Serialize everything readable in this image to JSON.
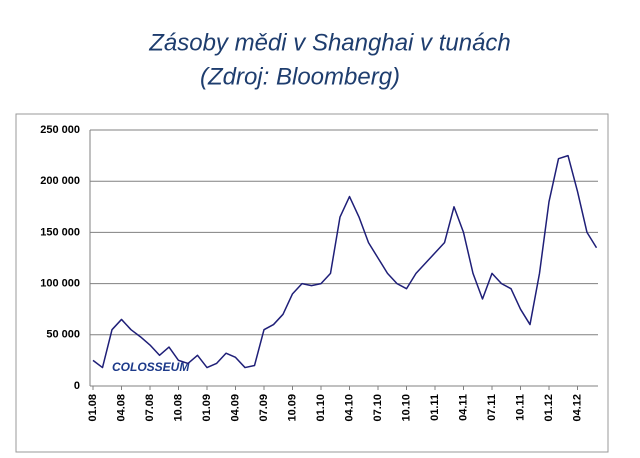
{
  "chart_data": {
    "type": "line",
    "title": "Zásoby mědi v Shanghai v tunách",
    "subtitle": "(Zdroj: Bloomberg)",
    "watermark": "COLOSSEUM",
    "categories": [
      "01.08",
      null,
      null,
      "04.08",
      null,
      null,
      "07.08",
      null,
      null,
      "10.08",
      null,
      null,
      "01.09",
      null,
      null,
      "04.09",
      null,
      null,
      "07.09",
      null,
      null,
      "10.09",
      null,
      null,
      "01.10",
      null,
      null,
      "04.10",
      null,
      null,
      "07.10",
      null,
      null,
      "10.10",
      null,
      null,
      "01.11",
      null,
      null,
      "04.11",
      null,
      null,
      "07.11",
      null,
      null,
      "10.11",
      null,
      null,
      "01.12",
      null,
      null,
      "04.12",
      null,
      null
    ],
    "values": [
      25000,
      18000,
      55000,
      65000,
      55000,
      48000,
      40000,
      30000,
      38000,
      25000,
      22000,
      30000,
      18000,
      22000,
      32000,
      28000,
      18000,
      20000,
      55000,
      60000,
      70000,
      90000,
      100000,
      98000,
      100000,
      110000,
      165000,
      185000,
      165000,
      140000,
      125000,
      110000,
      100000,
      95000,
      110000,
      120000,
      130000,
      140000,
      175000,
      150000,
      110000,
      85000,
      110000,
      100000,
      95000,
      75000,
      60000,
      110000,
      180000,
      222000,
      225000,
      190000,
      150000,
      135000
    ],
    "color": "#1f1f78",
    "ylim": [
      0,
      250000
    ],
    "yticks": [
      {
        "value": 0,
        "label": "0"
      },
      {
        "value": 50000,
        "label": "50 000"
      },
      {
        "value": 100000,
        "label": "100 000"
      },
      {
        "value": 150000,
        "label": "150 000"
      },
      {
        "value": 200000,
        "label": "200 000"
      },
      {
        "value": 250000,
        "label": "250 000"
      }
    ],
    "grid": true
  }
}
